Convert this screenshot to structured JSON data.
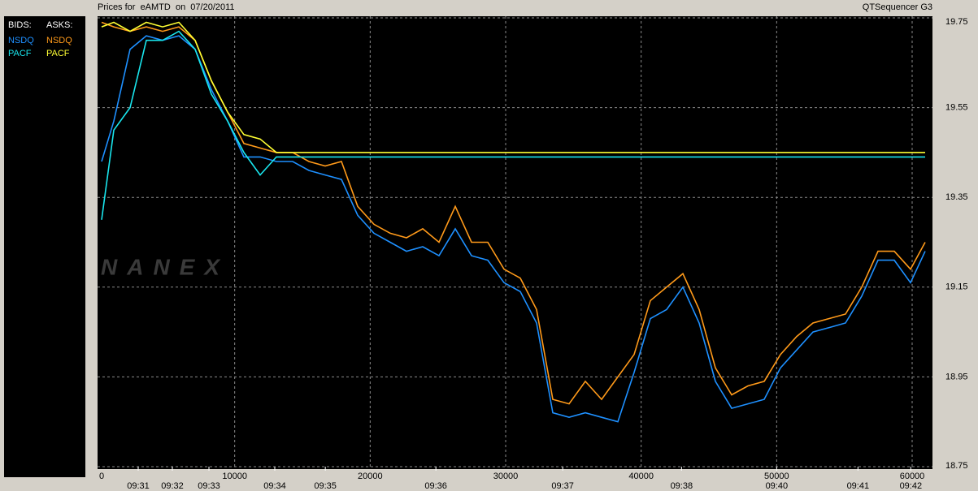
{
  "chart_data": {
    "type": "line",
    "title": "Prices for  eAMTD  on  07/20/2011",
    "app_label": "QTSequencer G3",
    "watermark": "NANEX",
    "legend_headers": [
      "BIDS:",
      "ASKS:"
    ],
    "grid": true,
    "xlim": [
      0,
      61500
    ],
    "ylim": [
      18.75,
      19.75
    ],
    "xticks": [
      0,
      10000,
      20000,
      30000,
      40000,
      50000,
      60000
    ],
    "yticks": [
      19.75,
      19.55,
      19.35,
      19.15,
      18.95,
      18.75
    ],
    "x2ticks": [
      {
        "value": 2880,
        "label": "09:31"
      },
      {
        "value": 5400,
        "label": "09:32"
      },
      {
        "value": 8100,
        "label": "09:33"
      },
      {
        "value": 12960,
        "label": "09:34"
      },
      {
        "value": 16690,
        "label": "09:35"
      },
      {
        "value": 24850,
        "label": "09:36"
      },
      {
        "value": 34210,
        "label": "09:37"
      },
      {
        "value": 42980,
        "label": "09:38"
      },
      {
        "value": 50000,
        "label": "09:40"
      },
      {
        "value": 56000,
        "label": "09:41"
      },
      {
        "value": 59900,
        "label": "09:42"
      }
    ],
    "series": [
      {
        "name": "NSDQ",
        "side": "ask",
        "color": "#ff9a1a",
        "x": [
          180,
          1080,
          2280,
          3480,
          4680,
          5880,
          7080,
          8280,
          9480,
          10680,
          11880,
          13080,
          14280,
          15480,
          16680,
          17880,
          19080,
          20280,
          21480,
          22680,
          23880,
          25080,
          26280,
          27480,
          28680,
          29880,
          31080,
          32280,
          33480,
          34680,
          35880,
          37080,
          38280,
          39480,
          40680,
          41880,
          43080,
          44280,
          45480,
          46680,
          47880,
          49080,
          50280,
          51480,
          52680,
          53880,
          55080,
          56280,
          57480,
          58680,
          59880,
          60960
        ],
        "values": [
          19.74,
          19.73,
          19.72,
          19.73,
          19.72,
          19.73,
          19.7,
          19.61,
          19.54,
          19.47,
          19.46,
          19.45,
          19.45,
          19.43,
          19.42,
          19.43,
          19.33,
          19.29,
          19.27,
          19.26,
          19.28,
          19.25,
          19.33,
          19.25,
          19.25,
          19.19,
          19.17,
          19.1,
          18.9,
          18.89,
          18.94,
          18.9,
          18.95,
          19.0,
          19.12,
          19.15,
          19.18,
          19.1,
          18.97,
          18.91,
          18.93,
          18.94,
          19.0,
          19.04,
          19.07,
          19.08,
          19.09,
          19.15,
          19.23,
          19.23,
          19.19,
          19.25
        ]
      },
      {
        "name": "PACF",
        "side": "ask",
        "color": "#ffff33",
        "x": [
          180,
          1080,
          2280,
          3480,
          4680,
          5880,
          7080,
          8280,
          9480,
          10680,
          11880,
          13080,
          60960
        ],
        "values": [
          19.73,
          19.74,
          19.72,
          19.74,
          19.73,
          19.74,
          19.7,
          19.61,
          19.54,
          19.49,
          19.48,
          19.45,
          19.45
        ]
      },
      {
        "name": "NSDQ",
        "side": "bid",
        "color": "#1e90ff",
        "x": [
          180,
          1080,
          2280,
          3480,
          4680,
          5880,
          7080,
          8280,
          9480,
          10680,
          11880,
          13080,
          14280,
          15480,
          16680,
          17880,
          19080,
          20280,
          21480,
          22680,
          23880,
          25080,
          26280,
          27480,
          28680,
          29880,
          31080,
          32280,
          33480,
          34680,
          35880,
          37080,
          38280,
          39480,
          40680,
          41880,
          43080,
          44280,
          45480,
          46680,
          47880,
          49080,
          50280,
          51480,
          52680,
          53880,
          55080,
          56280,
          57480,
          58680,
          59880,
          60960
        ],
        "values": [
          19.43,
          19.52,
          19.68,
          19.71,
          19.7,
          19.71,
          19.68,
          19.59,
          19.52,
          19.44,
          19.44,
          19.43,
          19.43,
          19.41,
          19.4,
          19.39,
          19.31,
          19.27,
          19.25,
          19.23,
          19.24,
          19.22,
          19.28,
          19.22,
          19.21,
          19.16,
          19.14,
          19.07,
          18.87,
          18.86,
          18.87,
          18.86,
          18.85,
          18.96,
          19.08,
          19.1,
          19.15,
          19.07,
          18.94,
          18.88,
          18.89,
          18.9,
          18.97,
          19.01,
          19.05,
          19.06,
          19.07,
          19.13,
          19.21,
          19.21,
          19.16,
          19.23
        ]
      },
      {
        "name": "PACF",
        "side": "bid",
        "color": "#19e6ee",
        "x": [
          180,
          1080,
          2280,
          3480,
          4680,
          5880,
          7080,
          8280,
          9480,
          10680,
          11880,
          13080,
          60960
        ],
        "values": [
          19.3,
          19.5,
          19.55,
          19.7,
          19.7,
          19.72,
          19.68,
          19.58,
          19.52,
          19.45,
          19.4,
          19.44,
          19.44
        ]
      }
    ]
  }
}
